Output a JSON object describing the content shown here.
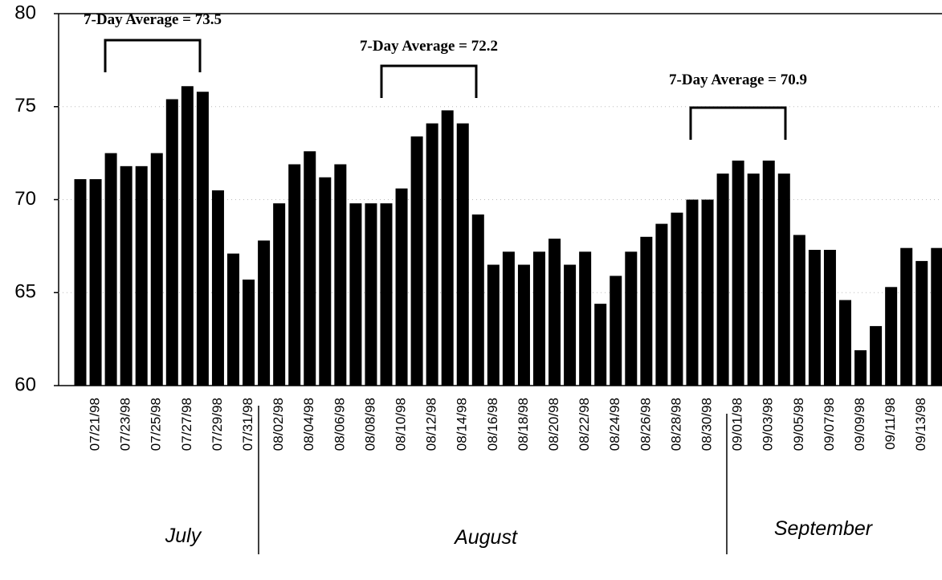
{
  "chart_data": {
    "type": "bar",
    "categories": [
      null,
      "07/21/98",
      null,
      "07/23/98",
      null,
      "07/25/98",
      null,
      "07/27/98",
      null,
      "07/29/98",
      null,
      "07/31/98",
      null,
      "08/02/98",
      null,
      "08/04/98",
      null,
      "08/06/98",
      null,
      "08/08/98",
      null,
      "08/10/98",
      null,
      "08/12/98",
      null,
      "08/14/98",
      null,
      "08/16/98",
      null,
      "08/18/98",
      null,
      "08/20/98",
      null,
      "08/22/98",
      null,
      "08/24/98",
      null,
      "08/26/98",
      null,
      "08/28/98",
      null,
      "08/30/98",
      null,
      "09/01/98",
      null,
      "09/03/98",
      null,
      "09/05/98",
      null,
      "09/07/98",
      null,
      "09/09/98",
      null,
      "09/11/98",
      null,
      "09/13/98",
      null
    ],
    "values": [
      71.1,
      71.1,
      72.5,
      71.8,
      71.8,
      72.5,
      75.4,
      76.1,
      75.8,
      70.5,
      67.1,
      65.7,
      67.8,
      69.8,
      71.9,
      72.6,
      71.2,
      71.9,
      69.8,
      69.8,
      69.8,
      70.6,
      73.4,
      74.1,
      74.8,
      74.1,
      69.2,
      66.5,
      67.2,
      66.5,
      67.2,
      67.9,
      66.5,
      67.2,
      64.4,
      65.9,
      67.2,
      68.0,
      68.7,
      69.3,
      70.0,
      70.0,
      71.4,
      72.1,
      71.4,
      72.1,
      71.4,
      68.1,
      67.3,
      67.3,
      64.6,
      61.9,
      63.2,
      65.3,
      67.4,
      66.7,
      67.4
    ],
    "color": "#000000",
    "ylim": [
      60,
      80
    ],
    "yticks": [
      60,
      65,
      70,
      75,
      80
    ],
    "grid": true,
    "annotations": [
      "7-Day Average = 73.5",
      "7-Day Average = 72.2",
      "7-Day Average = 70.9"
    ],
    "months": [
      "July",
      "August",
      "September"
    ]
  }
}
